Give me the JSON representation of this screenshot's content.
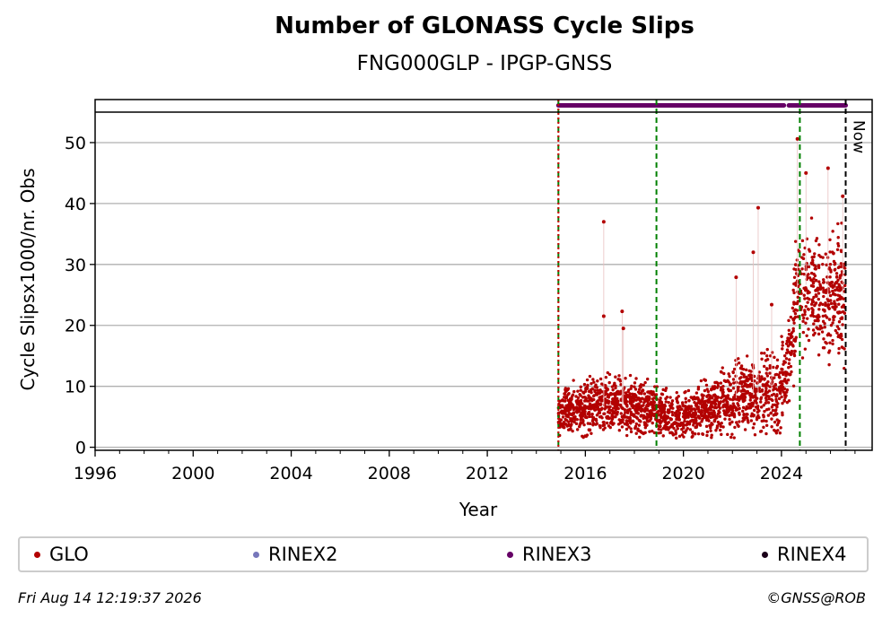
{
  "chart_data": {
    "type": "scatter",
    "title": "Number of GLONASS Cycle Slips",
    "subtitle": "FNG000GLP - IPGP-GNSS",
    "xlabel": "Year",
    "ylabel": "Cycle Slipsx1000/nr. Obs",
    "xlim": [
      1996,
      2027.7
    ],
    "ylim": [
      -0.5,
      55
    ],
    "x_ticks": [
      1996,
      2000,
      2004,
      2008,
      2012,
      2016,
      2020,
      2024
    ],
    "y_ticks": [
      0,
      10,
      20,
      30,
      40,
      50
    ],
    "grid": "horizontal",
    "legend_position": "bottom",
    "now_label": "Now",
    "now_year": 2026.62,
    "vertical_lines": [
      {
        "x": 2014.9,
        "color": "#008000",
        "style": "dashed"
      },
      {
        "x": 2014.9,
        "color": "#cc0000",
        "style": "dotted"
      },
      {
        "x": 2018.9,
        "color": "#008000",
        "style": "dashed"
      },
      {
        "x": 2024.75,
        "color": "#008000",
        "style": "dashed"
      },
      {
        "x": 2026.62,
        "color": "#000000",
        "style": "dashed"
      }
    ],
    "rinex_availability": [
      {
        "series": "RINEX3",
        "start": 2014.9,
        "end": 2024.1,
        "color": "#660066"
      },
      {
        "series": "RINEX3",
        "start": 2024.3,
        "end": 2026.62,
        "color": "#660066"
      }
    ],
    "series": [
      {
        "name": "GLO",
        "color": "#b30000",
        "trend": [
          {
            "x": 2014.9,
            "y": 5.5,
            "spread": 2.5
          },
          {
            "x": 2016.0,
            "y": 6.5,
            "spread": 3.0
          },
          {
            "x": 2017.5,
            "y": 7.0,
            "spread": 3.0
          },
          {
            "x": 2018.9,
            "y": 6.0,
            "spread": 2.5
          },
          {
            "x": 2020.0,
            "y": 5.0,
            "spread": 2.5
          },
          {
            "x": 2021.0,
            "y": 6.5,
            "spread": 3.0
          },
          {
            "x": 2022.5,
            "y": 8.5,
            "spread": 4.0
          },
          {
            "x": 2023.8,
            "y": 9.0,
            "spread": 4.5
          },
          {
            "x": 2024.2,
            "y": 12.0,
            "spread": 5.0
          },
          {
            "x": 2024.75,
            "y": 28.0,
            "spread": 7.0
          },
          {
            "x": 2025.5,
            "y": 24.0,
            "spread": 7.0
          },
          {
            "x": 2026.6,
            "y": 25.0,
            "spread": 7.0
          }
        ],
        "outliers": [
          {
            "x": 2016.75,
            "y": 37.0
          },
          {
            "x": 2016.75,
            "y": 21.5
          },
          {
            "x": 2017.5,
            "y": 22.3
          },
          {
            "x": 2017.55,
            "y": 19.5
          },
          {
            "x": 2022.15,
            "y": 27.9
          },
          {
            "x": 2022.85,
            "y": 32.0
          },
          {
            "x": 2023.05,
            "y": 39.3
          },
          {
            "x": 2023.6,
            "y": 23.4
          },
          {
            "x": 2024.65,
            "y": 50.6
          },
          {
            "x": 2025.0,
            "y": 45.0
          },
          {
            "x": 2025.9,
            "y": 45.8
          },
          {
            "x": 2026.5,
            "y": 41.2
          }
        ]
      },
      {
        "name": "RINEX2",
        "color": "#7777bb",
        "values": []
      },
      {
        "name": "RINEX3",
        "color": "#660066",
        "values": []
      },
      {
        "name": "RINEX4",
        "color": "#1a0019",
        "values": []
      }
    ]
  },
  "legend": [
    {
      "label": "GLO",
      "color": "#b30000"
    },
    {
      "label": "RINEX2",
      "color": "#7777bb"
    },
    {
      "label": "RINEX3",
      "color": "#660066"
    },
    {
      "label": "RINEX4",
      "color": "#1a0019"
    }
  ],
  "footer": {
    "timestamp": "Fri Aug 14 12:19:37 2026",
    "credit": "©GNSS@ROB"
  }
}
